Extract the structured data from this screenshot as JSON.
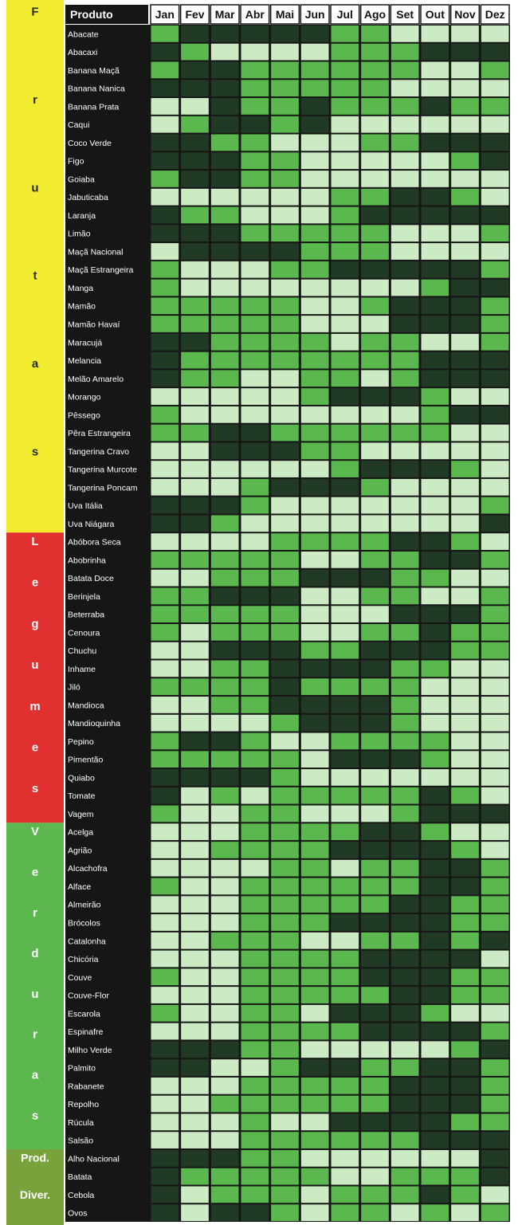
{
  "chart_data": {
    "type": "heatmap",
    "title": "",
    "header": {
      "product_label": "Produto"
    },
    "months": [
      "Jan",
      "Fev",
      "Mar",
      "Abr",
      "Mai",
      "Jun",
      "Jul",
      "Ago",
      "Set",
      "Out",
      "Nov",
      "Dez"
    ],
    "level_colors": {
      "1": "#ccebc4",
      "2": "#5bb84e",
      "3": "#213a25"
    },
    "groups": [
      {
        "label": "Frutas",
        "letters": [
          "F",
          "r",
          "u",
          "t",
          "a",
          "s"
        ],
        "color": "#f2ec30",
        "text_color": "#2a2a2a"
      },
      {
        "label": "Legumes",
        "letters": [
          "L",
          "e",
          "g",
          "u",
          "m",
          "e",
          "s"
        ],
        "color": "#e03030",
        "text_color": "#ffffff"
      },
      {
        "label": "Verduras",
        "letters": [
          "V",
          "e",
          "r",
          "d",
          "u",
          "r",
          "a",
          "s"
        ],
        "color": "#5cb84e",
        "text_color": "#ffffff"
      },
      {
        "label": "Prod. Diver.",
        "letters": [
          "Prod.",
          "Diver."
        ],
        "color": "#7aa23c",
        "text_color": "#ffffff"
      }
    ],
    "rows": [
      {
        "group": 0,
        "name": "Abacate",
        "levels": [
          2,
          3,
          3,
          3,
          3,
          3,
          2,
          2,
          1,
          1,
          1,
          1
        ]
      },
      {
        "group": 0,
        "name": "Abacaxi",
        "levels": [
          3,
          2,
          1,
          1,
          1,
          1,
          2,
          2,
          2,
          3,
          3,
          3
        ]
      },
      {
        "group": 0,
        "name": "Banana Maçã",
        "levels": [
          2,
          3,
          3,
          2,
          2,
          2,
          2,
          2,
          2,
          1,
          1,
          2
        ]
      },
      {
        "group": 0,
        "name": "Banana Nanica",
        "levels": [
          3,
          3,
          3,
          2,
          2,
          2,
          2,
          2,
          1,
          1,
          1,
          1
        ]
      },
      {
        "group": 0,
        "name": "Banana Prata",
        "levels": [
          1,
          1,
          3,
          2,
          2,
          3,
          2,
          2,
          2,
          3,
          2,
          2
        ]
      },
      {
        "group": 0,
        "name": "Caqui",
        "levels": [
          1,
          2,
          3,
          3,
          2,
          3,
          1,
          1,
          1,
          1,
          1,
          1
        ]
      },
      {
        "group": 0,
        "name": "Coco Verde",
        "levels": [
          3,
          3,
          2,
          2,
          1,
          1,
          1,
          2,
          2,
          3,
          3,
          3
        ]
      },
      {
        "group": 0,
        "name": "Figo",
        "levels": [
          3,
          3,
          3,
          2,
          2,
          1,
          1,
          1,
          1,
          1,
          2,
          3
        ]
      },
      {
        "group": 0,
        "name": "Goiaba",
        "levels": [
          2,
          3,
          3,
          2,
          2,
          1,
          1,
          1,
          1,
          1,
          1,
          1
        ]
      },
      {
        "group": 0,
        "name": "Jabuticaba",
        "levels": [
          1,
          1,
          1,
          1,
          1,
          1,
          2,
          2,
          3,
          3,
          2,
          1
        ]
      },
      {
        "group": 0,
        "name": "Laranja",
        "levels": [
          3,
          2,
          2,
          1,
          1,
          1,
          2,
          3,
          3,
          3,
          3,
          3
        ]
      },
      {
        "group": 0,
        "name": "Limão",
        "levels": [
          3,
          3,
          3,
          2,
          2,
          2,
          2,
          2,
          1,
          1,
          1,
          2
        ]
      },
      {
        "group": 0,
        "name": "Maçã Nacional",
        "levels": [
          1,
          3,
          3,
          3,
          3,
          2,
          2,
          2,
          1,
          1,
          1,
          1
        ]
      },
      {
        "group": 0,
        "name": "Maçã Estrangeira",
        "levels": [
          2,
          1,
          1,
          1,
          2,
          2,
          3,
          3,
          3,
          3,
          3,
          2
        ]
      },
      {
        "group": 0,
        "name": "Manga",
        "levels": [
          2,
          1,
          1,
          1,
          1,
          1,
          1,
          1,
          1,
          2,
          3,
          3
        ]
      },
      {
        "group": 0,
        "name": "Mamão",
        "levels": [
          2,
          2,
          2,
          2,
          2,
          1,
          1,
          2,
          3,
          3,
          3,
          2
        ]
      },
      {
        "group": 0,
        "name": "Mamão Havaí",
        "levels": [
          2,
          2,
          2,
          2,
          2,
          1,
          1,
          1,
          3,
          3,
          3,
          2
        ]
      },
      {
        "group": 0,
        "name": "Maracujá",
        "levels": [
          3,
          3,
          2,
          2,
          2,
          2,
          1,
          2,
          2,
          1,
          1,
          2
        ]
      },
      {
        "group": 0,
        "name": "Melancia",
        "levels": [
          3,
          2,
          2,
          2,
          2,
          2,
          2,
          2,
          2,
          3,
          3,
          3
        ]
      },
      {
        "group": 0,
        "name": "Melão Amarelo",
        "levels": [
          3,
          2,
          2,
          1,
          1,
          2,
          2,
          1,
          2,
          3,
          3,
          3
        ]
      },
      {
        "group": 0,
        "name": "Morango",
        "levels": [
          1,
          1,
          1,
          1,
          1,
          2,
          3,
          3,
          3,
          2,
          1,
          1
        ]
      },
      {
        "group": 0,
        "name": "Pêssego",
        "levels": [
          2,
          1,
          1,
          1,
          1,
          1,
          1,
          1,
          1,
          2,
          3,
          3
        ]
      },
      {
        "group": 0,
        "name": "Pêra Estrangeira",
        "levels": [
          2,
          2,
          3,
          3,
          2,
          2,
          2,
          2,
          2,
          2,
          1,
          1
        ]
      },
      {
        "group": 0,
        "name": "Tangerina Cravo",
        "levels": [
          1,
          1,
          3,
          3,
          3,
          2,
          2,
          1,
          1,
          1,
          1,
          1
        ]
      },
      {
        "group": 0,
        "name": "Tangerina Murcote",
        "levels": [
          1,
          1,
          1,
          1,
          1,
          1,
          2,
          3,
          3,
          3,
          2,
          1
        ]
      },
      {
        "group": 0,
        "name": "Tangerina Poncam",
        "levels": [
          1,
          1,
          1,
          2,
          3,
          3,
          3,
          2,
          1,
          1,
          1,
          1
        ]
      },
      {
        "group": 0,
        "name": "Uva Itália",
        "levels": [
          3,
          3,
          3,
          2,
          1,
          1,
          1,
          1,
          1,
          1,
          1,
          2
        ]
      },
      {
        "group": 0,
        "name": "Uva Niágara",
        "levels": [
          3,
          3,
          2,
          1,
          1,
          1,
          1,
          1,
          1,
          1,
          1,
          3
        ]
      },
      {
        "group": 1,
        "name": "Abóbora Seca",
        "levels": [
          1,
          1,
          1,
          1,
          2,
          2,
          2,
          2,
          3,
          3,
          2,
          1
        ]
      },
      {
        "group": 1,
        "name": "Abobrinha",
        "levels": [
          2,
          2,
          2,
          2,
          2,
          1,
          1,
          2,
          2,
          3,
          3,
          2
        ]
      },
      {
        "group": 1,
        "name": "Batata Doce",
        "levels": [
          1,
          1,
          2,
          2,
          2,
          3,
          3,
          3,
          2,
          2,
          1,
          1
        ]
      },
      {
        "group": 1,
        "name": "Berinjela",
        "levels": [
          2,
          2,
          3,
          3,
          3,
          1,
          1,
          2,
          2,
          1,
          1,
          2
        ]
      },
      {
        "group": 1,
        "name": "Beterraba",
        "levels": [
          2,
          2,
          2,
          2,
          2,
          1,
          1,
          1,
          3,
          3,
          3,
          2
        ]
      },
      {
        "group": 1,
        "name": "Cenoura",
        "levels": [
          2,
          1,
          2,
          2,
          2,
          1,
          1,
          2,
          2,
          3,
          2,
          2
        ]
      },
      {
        "group": 1,
        "name": "Chuchu",
        "levels": [
          1,
          1,
          3,
          3,
          3,
          2,
          2,
          3,
          3,
          3,
          2,
          2
        ]
      },
      {
        "group": 1,
        "name": "Inhame",
        "levels": [
          1,
          1,
          2,
          2,
          3,
          3,
          3,
          3,
          2,
          2,
          1,
          1
        ]
      },
      {
        "group": 1,
        "name": "Jiló",
        "levels": [
          2,
          2,
          2,
          2,
          3,
          2,
          2,
          2,
          2,
          1,
          1,
          1
        ]
      },
      {
        "group": 1,
        "name": "Mandioca",
        "levels": [
          1,
          1,
          2,
          2,
          3,
          3,
          3,
          3,
          2,
          1,
          1,
          1
        ]
      },
      {
        "group": 1,
        "name": "Mandioquinha",
        "levels": [
          1,
          1,
          1,
          1,
          2,
          3,
          3,
          3,
          2,
          1,
          1,
          1
        ]
      },
      {
        "group": 1,
        "name": "Pepino",
        "levels": [
          2,
          3,
          3,
          2,
          1,
          1,
          2,
          2,
          2,
          2,
          1,
          1
        ]
      },
      {
        "group": 1,
        "name": "Pimentão",
        "levels": [
          2,
          2,
          2,
          2,
          2,
          1,
          3,
          3,
          3,
          2,
          1,
          1
        ]
      },
      {
        "group": 1,
        "name": "Quiabo",
        "levels": [
          3,
          3,
          3,
          3,
          2,
          1,
          1,
          1,
          1,
          1,
          1,
          1
        ]
      },
      {
        "group": 1,
        "name": "Tomate",
        "levels": [
          3,
          1,
          2,
          1,
          2,
          2,
          2,
          2,
          2,
          3,
          2,
          1
        ]
      },
      {
        "group": 1,
        "name": "Vagem",
        "levels": [
          2,
          1,
          1,
          2,
          2,
          1,
          1,
          1,
          2,
          3,
          3,
          3
        ]
      },
      {
        "group": 2,
        "name": "Acelga",
        "levels": [
          1,
          1,
          1,
          2,
          2,
          2,
          2,
          3,
          3,
          2,
          1,
          1
        ]
      },
      {
        "group": 2,
        "name": "Agrião",
        "levels": [
          1,
          1,
          2,
          2,
          2,
          2,
          3,
          3,
          3,
          3,
          2,
          1
        ]
      },
      {
        "group": 2,
        "name": "Alcachofra",
        "levels": [
          1,
          1,
          1,
          1,
          2,
          2,
          1,
          2,
          2,
          3,
          3,
          2
        ]
      },
      {
        "group": 2,
        "name": "Alface",
        "levels": [
          2,
          1,
          1,
          2,
          2,
          2,
          2,
          2,
          2,
          3,
          3,
          2
        ]
      },
      {
        "group": 2,
        "name": "Almeirão",
        "levels": [
          1,
          1,
          1,
          2,
          2,
          2,
          2,
          2,
          3,
          3,
          2,
          2
        ]
      },
      {
        "group": 2,
        "name": "Brócolos",
        "levels": [
          1,
          1,
          1,
          2,
          2,
          2,
          3,
          3,
          3,
          3,
          2,
          2
        ]
      },
      {
        "group": 2,
        "name": "Catalonha",
        "levels": [
          1,
          1,
          2,
          2,
          2,
          1,
          1,
          2,
          2,
          3,
          2,
          3
        ]
      },
      {
        "group": 2,
        "name": "Chicória",
        "levels": [
          1,
          1,
          1,
          2,
          2,
          2,
          2,
          3,
          3,
          3,
          3,
          1
        ]
      },
      {
        "group": 2,
        "name": "Couve",
        "levels": [
          2,
          1,
          1,
          2,
          2,
          2,
          2,
          3,
          3,
          3,
          2,
          2
        ]
      },
      {
        "group": 2,
        "name": "Couve-Flor",
        "levels": [
          1,
          1,
          1,
          2,
          2,
          2,
          2,
          2,
          3,
          3,
          2,
          2
        ]
      },
      {
        "group": 2,
        "name": "Escarola",
        "levels": [
          2,
          1,
          1,
          2,
          2,
          1,
          3,
          3,
          3,
          2,
          1,
          1
        ]
      },
      {
        "group": 2,
        "name": "Espinafre",
        "levels": [
          1,
          1,
          1,
          2,
          2,
          2,
          2,
          3,
          3,
          3,
          3,
          2
        ]
      },
      {
        "group": 2,
        "name": "Milho Verde",
        "levels": [
          3,
          3,
          3,
          2,
          2,
          1,
          1,
          1,
          1,
          1,
          2,
          3
        ]
      },
      {
        "group": 2,
        "name": "Palmito",
        "levels": [
          3,
          3,
          1,
          1,
          2,
          3,
          3,
          2,
          2,
          3,
          3,
          2
        ]
      },
      {
        "group": 2,
        "name": "Rabanete",
        "levels": [
          1,
          1,
          1,
          2,
          2,
          2,
          2,
          2,
          3,
          3,
          3,
          2
        ]
      },
      {
        "group": 2,
        "name": "Repolho",
        "levels": [
          1,
          1,
          2,
          2,
          2,
          2,
          2,
          2,
          3,
          3,
          3,
          2
        ]
      },
      {
        "group": 2,
        "name": "Rúcula",
        "levels": [
          1,
          1,
          1,
          2,
          1,
          1,
          3,
          3,
          3,
          3,
          2,
          2
        ]
      },
      {
        "group": 2,
        "name": "Salsão",
        "levels": [
          1,
          1,
          1,
          2,
          2,
          2,
          2,
          2,
          2,
          3,
          3,
          3
        ]
      },
      {
        "group": 3,
        "name": "Alho Nacional",
        "levels": [
          3,
          3,
          3,
          2,
          2,
          1,
          1,
          1,
          1,
          1,
          1,
          3
        ]
      },
      {
        "group": 3,
        "name": "Batata",
        "levels": [
          3,
          2,
          2,
          2,
          2,
          2,
          1,
          1,
          2,
          2,
          2,
          3
        ]
      },
      {
        "group": 3,
        "name": "Cebola",
        "levels": [
          3,
          1,
          2,
          2,
          2,
          1,
          2,
          2,
          2,
          3,
          2,
          1
        ]
      },
      {
        "group": 3,
        "name": "Ovos",
        "levels": [
          3,
          1,
          3,
          3,
          2,
          1,
          2,
          2,
          1,
          2,
          1,
          2
        ]
      }
    ]
  }
}
